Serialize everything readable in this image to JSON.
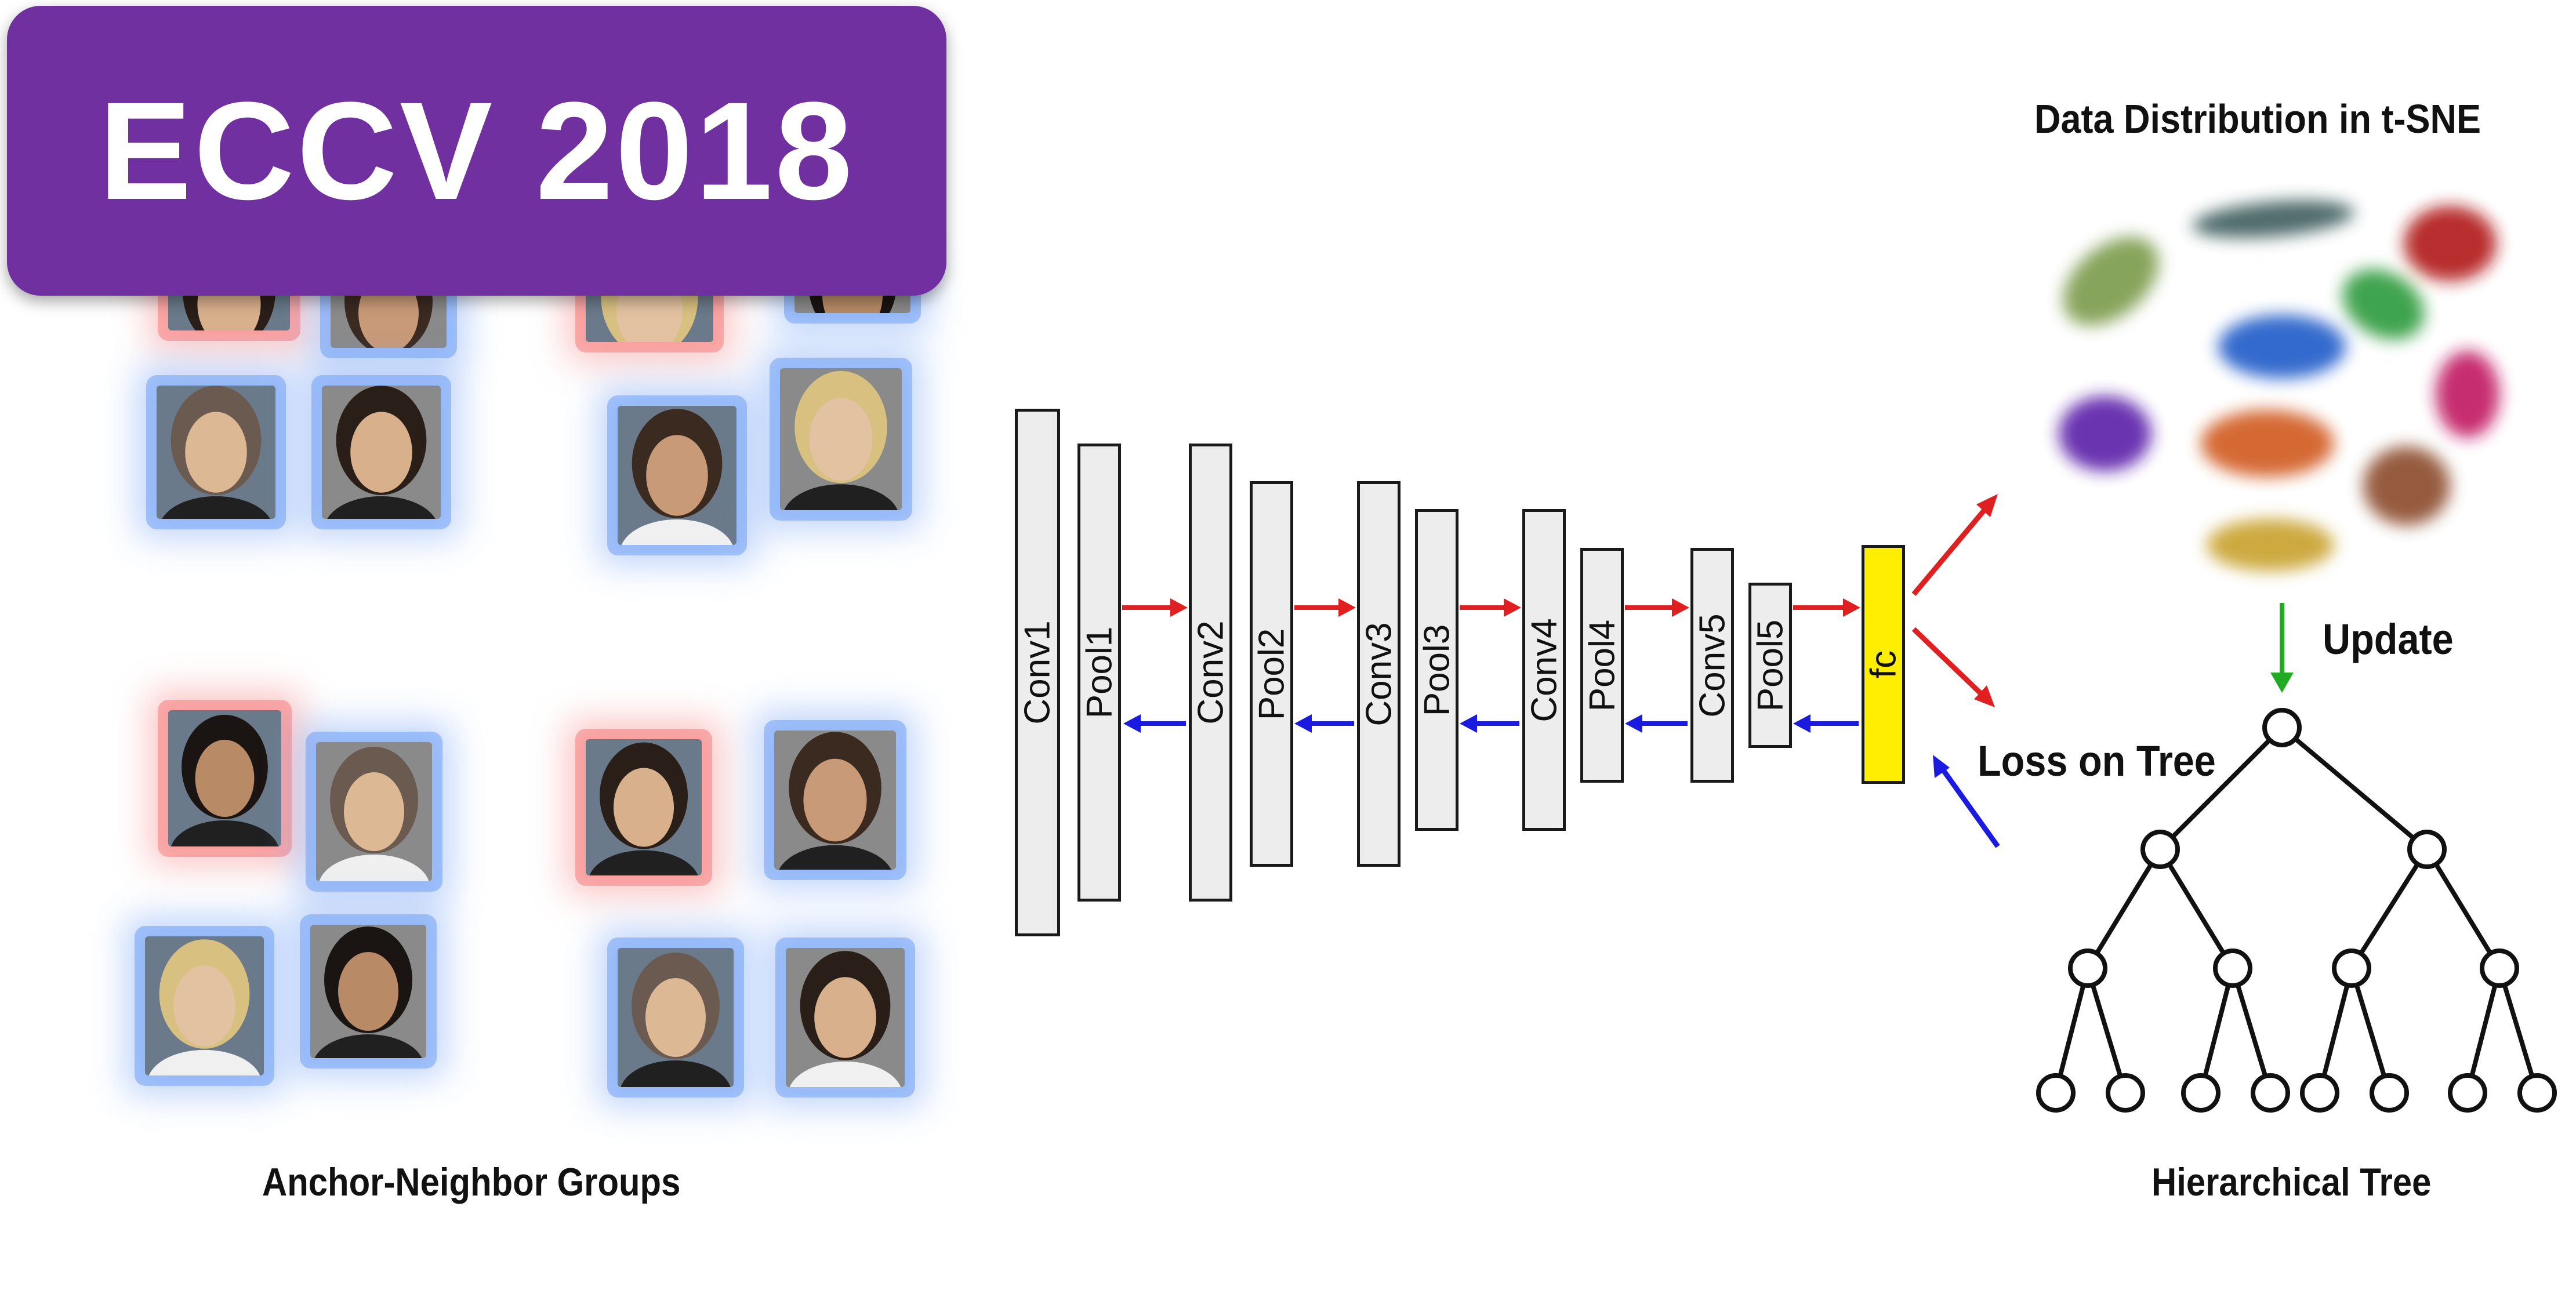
{
  "badge": {
    "text": "ECCV 2018"
  },
  "left_caption": "Anchor-Neighbor Groups",
  "tsne_title": "Data Distribution in t-SNE",
  "tree_caption": "Hierarchical Tree",
  "update_label": "Update",
  "loss_label": "Loss on Tree",
  "layers": [
    "Conv1",
    "Pool1",
    "Conv2",
    "Pool2",
    "Conv3",
    "Pool3",
    "Conv4",
    "Pool4",
    "Conv5",
    "Pool5",
    "fc"
  ],
  "colors": {
    "badge": "#7030a0",
    "forward_arrow": "#e02020",
    "backward_arrow": "#1a1ae0",
    "update_arrow": "#22aa22",
    "fc_layer": "#ffee00",
    "anchor_glow": "#f67e7e",
    "neighbor_glow": "#70a0f6",
    "clusters": [
      "#3a5a5a",
      "#7a9a4a",
      "#b01818",
      "#2a9a3a",
      "#1a5ac8",
      "#c01860",
      "#5a1aa8",
      "#d0581a",
      "#8a4a2a",
      "#c8a02a"
    ]
  }
}
